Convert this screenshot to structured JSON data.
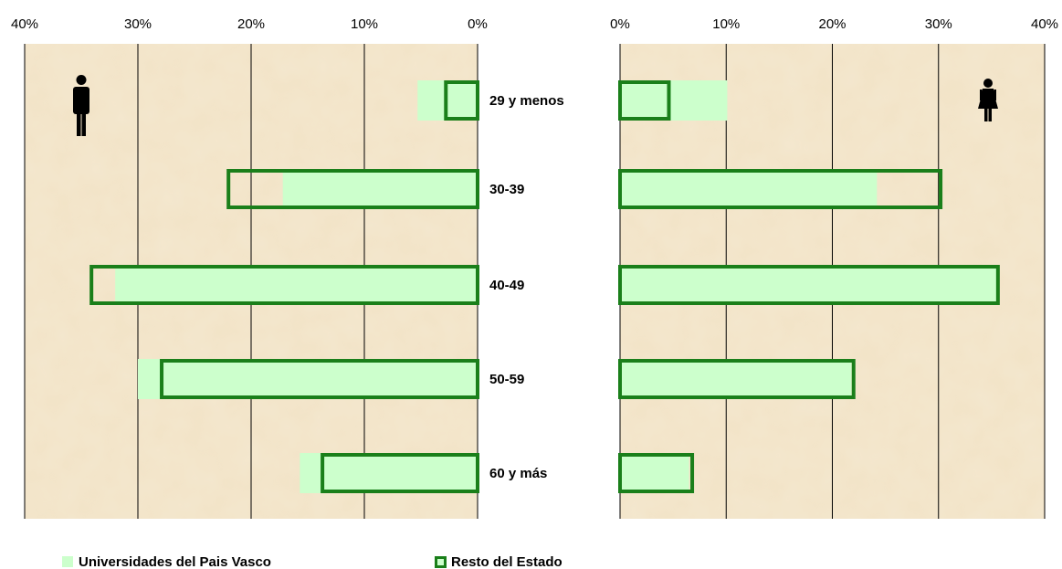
{
  "chart_data": {
    "type": "bar",
    "orientation": "horizontal",
    "layout": "population-pyramid",
    "categories": [
      "29 y menos",
      "30-39",
      "40-49",
      "50-59",
      "60 y más"
    ],
    "xlim": [
      0,
      40
    ],
    "x_tick_values": [
      0,
      10,
      20,
      30,
      40
    ],
    "x_tick_labels": [
      "0%",
      "10%",
      "20%",
      "30%",
      "40%"
    ],
    "grid": "vertical",
    "legend_position": "bottom",
    "background": "parchment texture",
    "panels": [
      {
        "side": "left",
        "group_icon": "male-icon",
        "series": [
          {
            "name": "Universidades del Pais Vasco",
            "values": [
              5.3,
              17.2,
              32.0,
              30.0,
              15.7
            ]
          },
          {
            "name": "Resto del Estado",
            "values": [
              2.8,
              22.0,
              34.1,
              27.9,
              13.7
            ]
          }
        ]
      },
      {
        "side": "right",
        "group_icon": "female-icon",
        "series": [
          {
            "name": "Universidades del Pais Vasco",
            "values": [
              10.1,
              24.2,
              35.5,
              21.8,
              6.5
            ]
          },
          {
            "name": "Resto del Estado",
            "values": [
              4.6,
              30.2,
              35.6,
              22.0,
              6.8
            ]
          }
        ]
      }
    ],
    "legend": [
      {
        "label": "Universidades del Pais Vasco",
        "style": "filled",
        "color": "#ccffcc"
      },
      {
        "label": "Resto del Estado",
        "style": "outline",
        "color": "#1a7f1a"
      }
    ]
  },
  "colors": {
    "light_fill": "#ccffcc",
    "outline": "#1a7f1a",
    "background": "#f2e3c6",
    "grid": "#000000"
  }
}
